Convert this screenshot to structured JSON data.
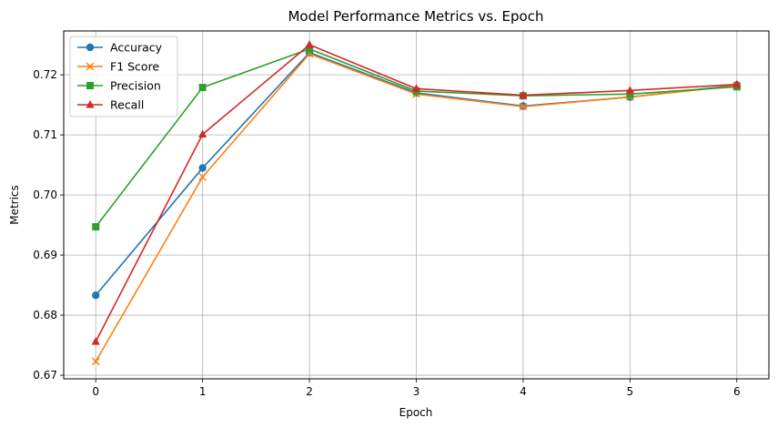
{
  "chart_data": {
    "type": "line",
    "title": "Model Performance Metrics vs. Epoch",
    "xlabel": "Epoch",
    "ylabel": "Metrics",
    "x": [
      0,
      1,
      2,
      3,
      4,
      5,
      6
    ],
    "xlim": [
      -0.3,
      6.3
    ],
    "ylim": [
      0.6694,
      0.7273
    ],
    "xticks": [
      "0",
      "1",
      "2",
      "3",
      "4",
      "5",
      "6"
    ],
    "yticks": [
      0.67,
      0.68,
      0.69,
      0.7,
      0.71,
      0.72
    ],
    "ytick_labels": [
      "0.67",
      "0.68",
      "0.69",
      "0.70",
      "0.71",
      "0.72"
    ],
    "grid": true,
    "legend_position": "top-left",
    "series": [
      {
        "name": "Accuracy",
        "color": "#1f77b4",
        "marker": "circle",
        "values": [
          0.6833,
          0.7045,
          0.7237,
          0.717,
          0.7148,
          0.7163,
          0.7183
        ]
      },
      {
        "name": "F1 Score",
        "color": "#ff7f0e",
        "marker": "x",
        "values": [
          0.6723,
          0.703,
          0.7235,
          0.7168,
          0.7147,
          0.7163,
          0.7182
        ]
      },
      {
        "name": "Precision",
        "color": "#2ca02c",
        "marker": "square",
        "values": [
          0.6947,
          0.7179,
          0.7243,
          0.7173,
          0.7165,
          0.7168,
          0.718
        ]
      },
      {
        "name": "Recall",
        "color": "#d62728",
        "marker": "triangle",
        "values": [
          0.6756,
          0.7101,
          0.725,
          0.7177,
          0.7166,
          0.7174,
          0.7184
        ]
      }
    ]
  }
}
